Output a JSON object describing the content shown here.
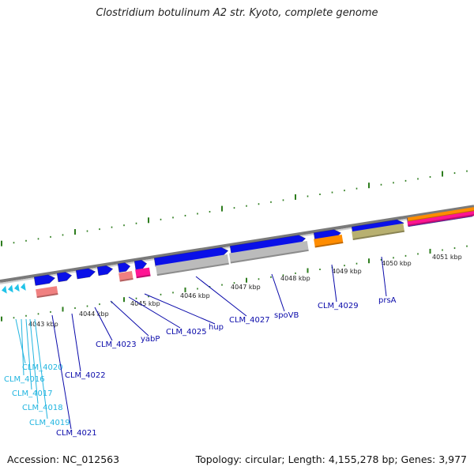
{
  "title": "Clostridium botulinum A2 str. Kyoto, complete genome",
  "footer": {
    "accession": "Accession: NC_012563",
    "summary": "Topology: circular; Length: 4,155,278 bp; Genes: 3,977"
  },
  "colors": {
    "forward_gene": "#0a10e8",
    "reverse_gene_grey": "#bbbbbb",
    "pink_gene": "#f08080",
    "magenta_gene": "#ff1493",
    "orange_gene": "#ff8c00",
    "olive_gene": "#b8b070",
    "small_gene_cyan": "#22c3e8",
    "label_blue": "#0a0aaa",
    "label_cyan": "#22b5e0",
    "tick_green": "#2e7d1e",
    "backbone": "#888888"
  },
  "scale_labels": [
    "4043 kbp",
    "4044 kbp",
    "4045 kbp",
    "4046 kbp",
    "4047 kbp",
    "4048 kbp",
    "4049 kbp",
    "4050 kbp",
    "4051 kbp"
  ],
  "gene_labels": [
    {
      "name": "CLM_4020",
      "color": "cyan"
    },
    {
      "name": "CLM_4016",
      "color": "cyan"
    },
    {
      "name": "CLM_4017",
      "color": "cyan"
    },
    {
      "name": "CLM_4018",
      "color": "cyan"
    },
    {
      "name": "CLM_4019",
      "color": "cyan"
    },
    {
      "name": "CLM_4021",
      "color": "blue"
    },
    {
      "name": "CLM_4022",
      "color": "blue"
    },
    {
      "name": "CLM_4023",
      "color": "blue"
    },
    {
      "name": "yabP",
      "color": "blue"
    },
    {
      "name": "CLM_4025",
      "color": "blue"
    },
    {
      "name": "hup",
      "color": "blue"
    },
    {
      "name": "CLM_4027",
      "color": "blue"
    },
    {
      "name": "spoVB",
      "color": "blue"
    },
    {
      "name": "CLM_4029",
      "color": "blue"
    },
    {
      "name": "prsA",
      "color": "blue"
    }
  ]
}
